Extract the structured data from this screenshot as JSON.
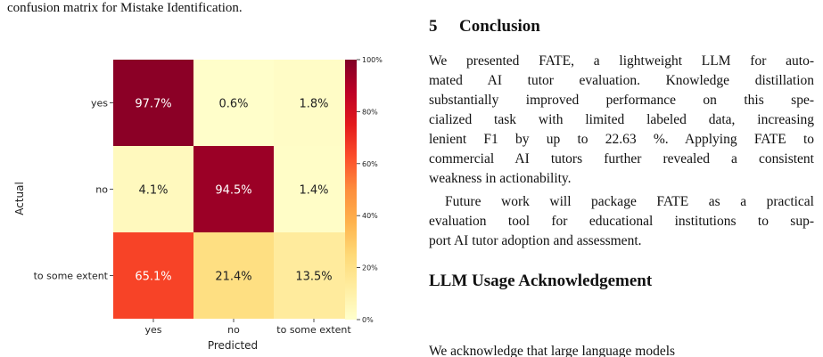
{
  "caption_tail": "confusion matrix for Mistake Identification.",
  "chart_data": {
    "type": "heatmap",
    "title": "",
    "xlabel": "Predicted",
    "ylabel": "Actual",
    "x_categories": [
      "yes",
      "no",
      "to some extent"
    ],
    "y_categories": [
      "yes",
      "no",
      "to some extent"
    ],
    "values": [
      [
        97.7,
        0.6,
        1.8
      ],
      [
        4.1,
        94.5,
        1.4
      ],
      [
        65.1,
        21.4,
        13.5
      ]
    ],
    "cell_labels": [
      [
        "97.7%",
        "0.6%",
        "1.8%"
      ],
      [
        "4.1%",
        "94.5%",
        "1.4%"
      ],
      [
        "65.1%",
        "21.4%",
        "13.5%"
      ]
    ],
    "colorbar": {
      "range": [
        0,
        100
      ],
      "ticks": [
        0,
        20,
        40,
        60,
        80,
        100
      ],
      "tick_labels": [
        "0%",
        "20%",
        "40%",
        "60%",
        "80%",
        "100%"
      ],
      "colormap": "YlOrRd"
    }
  },
  "section5": {
    "number": "5",
    "title": "Conclusion",
    "para1": [
      "We presented FATE, a lightweight LLM for auto-",
      "mated AI tutor evaluation. Knowledge distillation",
      "substantially improved performance on this spe-",
      "cialized task with limited labeled data, increasing",
      "lenient F1 by up to 22.63 %.  Applying FATE to",
      "commercial AI tutors further revealed a consistent",
      "weakness in actionability."
    ],
    "para2": [
      "Future work will package FATE as a practical",
      "evaluation tool for educational institutions to sup-",
      "port AI tutor adoption and assessment."
    ]
  },
  "section_llm": {
    "title": "LLM Usage Acknowledgement",
    "partial_line": "We acknowledge that large language models"
  }
}
